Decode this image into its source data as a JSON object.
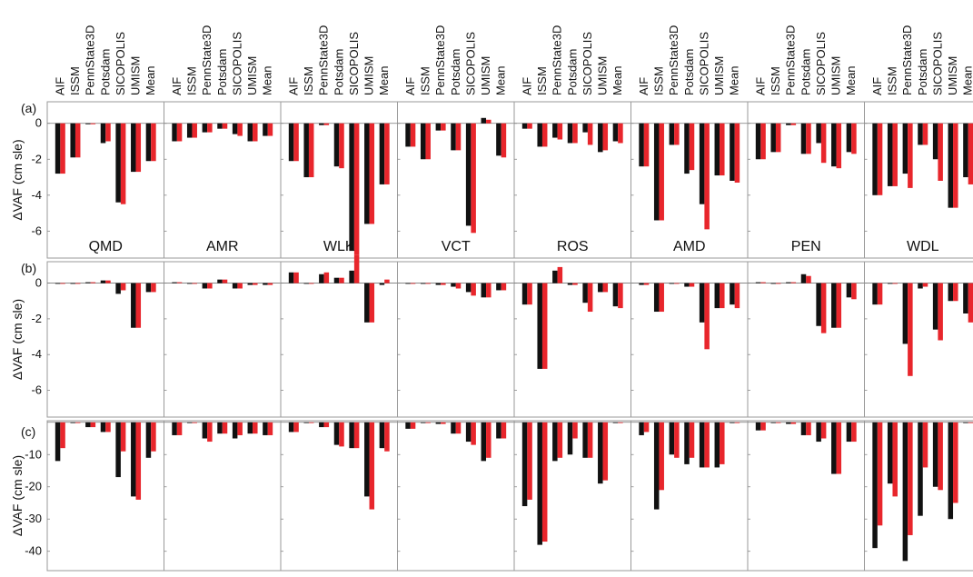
{
  "chart_data": {
    "type": "bar",
    "models": [
      "AIF",
      "ISSM",
      "PennState3D",
      "Potsdam",
      "SICOPOLIS",
      "UMISM",
      "Mean"
    ],
    "regions": [
      "QMD",
      "AMR",
      "WLK",
      "VCT",
      "ROS",
      "AMD",
      "PEN",
      "WDL"
    ],
    "colors": {
      "series1": "#111111",
      "series2": "#e8262c"
    },
    "panels": [
      {
        "label": "(a)",
        "ylabel": "ΔVAF (cm sle)",
        "ylim": [
          -7.5,
          1.2
        ],
        "yticks": [
          0,
          -2,
          -4,
          -6
        ],
        "show_region_labels": true,
        "values": {
          "QMD": [
            [
              -2.8,
              -2.8
            ],
            [
              -1.9,
              -1.9
            ],
            [
              -0.05,
              -0.05
            ],
            [
              -1.1,
              -1.0
            ],
            [
              -4.4,
              -4.5
            ],
            [
              -2.7,
              -2.7
            ],
            [
              -2.1,
              -2.1
            ]
          ],
          "AMR": [
            [
              -1.0,
              -1.0
            ],
            [
              -0.8,
              -0.8
            ],
            [
              -0.5,
              -0.5
            ],
            [
              -0.3,
              -0.3
            ],
            [
              -0.6,
              -0.7
            ],
            [
              -1.0,
              -1.0
            ],
            [
              -0.7,
              -0.7
            ]
          ],
          "WLK": [
            [
              -2.1,
              -2.1
            ],
            [
              -3.0,
              -3.0
            ],
            [
              -0.1,
              -0.1
            ],
            [
              -2.4,
              -2.5
            ],
            [
              -7.1,
              -7.3
            ],
            [
              -5.6,
              -5.6
            ],
            [
              -3.4,
              -3.4
            ]
          ],
          "VCT": [
            [
              -1.3,
              -1.3
            ],
            [
              -2.0,
              -2.0
            ],
            [
              -0.4,
              -0.4
            ],
            [
              -1.5,
              -1.5
            ],
            [
              -5.7,
              -6.1
            ],
            [
              0.3,
              0.2
            ],
            [
              -1.8,
              -1.9
            ]
          ],
          "ROS": [
            [
              -0.3,
              -0.3
            ],
            [
              -1.3,
              -1.3
            ],
            [
              -0.8,
              -0.9
            ],
            [
              -1.1,
              -1.1
            ],
            [
              -0.5,
              -1.2
            ],
            [
              -1.6,
              -1.5
            ],
            [
              -1.0,
              -1.1
            ]
          ],
          "AMD": [
            [
              -2.4,
              -2.4
            ],
            [
              -5.4,
              -5.4
            ],
            [
              -1.2,
              -1.2
            ],
            [
              -2.8,
              -2.6
            ],
            [
              -4.5,
              -5.9
            ],
            [
              -2.9,
              -2.9
            ],
            [
              -3.2,
              -3.3
            ]
          ],
          "PEN": [
            [
              -2.0,
              -2.0
            ],
            [
              -1.6,
              -1.6
            ],
            [
              -0.1,
              -0.1
            ],
            [
              -1.7,
              -1.7
            ],
            [
              -1.1,
              -2.2
            ],
            [
              -2.4,
              -2.5
            ],
            [
              -1.6,
              -1.7
            ]
          ],
          "WDL": [
            [
              -4.0,
              -4.0
            ],
            [
              -3.5,
              -3.5
            ],
            [
              -2.8,
              -3.6
            ],
            [
              -1.2,
              -1.2
            ],
            [
              -2.0,
              -3.2
            ],
            [
              -4.7,
              -4.7
            ],
            [
              -3.0,
              -3.4
            ]
          ]
        }
      },
      {
        "label": "(b)",
        "ylabel": "ΔVAF (cm sle)",
        "ylim": [
          -7.5,
          1.2
        ],
        "yticks": [
          0,
          -2,
          -4,
          -6
        ],
        "show_region_labels": false,
        "values": {
          "QMD": [
            [
              0.0,
              0.0
            ],
            [
              0.0,
              0.0
            ],
            [
              0.05,
              0.05
            ],
            [
              0.15,
              0.15
            ],
            [
              -0.6,
              -0.4
            ],
            [
              -2.5,
              -2.5
            ],
            [
              -0.5,
              -0.5
            ]
          ],
          "AMR": [
            [
              0.05,
              0.05
            ],
            [
              0.0,
              0.0
            ],
            [
              -0.3,
              -0.3
            ],
            [
              0.2,
              0.2
            ],
            [
              -0.3,
              -0.3
            ],
            [
              -0.1,
              -0.1
            ],
            [
              -0.1,
              -0.1
            ]
          ],
          "WLK": [
            [
              0.6,
              0.6
            ],
            [
              0.0,
              0.0
            ],
            [
              0.5,
              0.6
            ],
            [
              0.3,
              0.3
            ],
            [
              0.7,
              1.6
            ],
            [
              -2.2,
              -2.2
            ],
            [
              -0.1,
              0.2
            ]
          ],
          "VCT": [
            [
              0.0,
              0.0
            ],
            [
              0.0,
              0.0
            ],
            [
              -0.1,
              -0.1
            ],
            [
              -0.2,
              -0.3
            ],
            [
              -0.5,
              -0.7
            ],
            [
              -0.8,
              -0.8
            ],
            [
              -0.4,
              -0.4
            ]
          ],
          "ROS": [
            [
              -1.2,
              -1.2
            ],
            [
              -4.8,
              -4.8
            ],
            [
              0.7,
              0.9
            ],
            [
              -0.1,
              -0.1
            ],
            [
              -1.1,
              -1.6
            ],
            [
              -0.5,
              -0.5
            ],
            [
              -1.3,
              -1.4
            ]
          ],
          "AMD": [
            [
              -0.1,
              -0.1
            ],
            [
              -1.6,
              -1.6
            ],
            [
              0.0,
              0.0
            ],
            [
              -0.2,
              -0.2
            ],
            [
              -2.2,
              -3.7
            ],
            [
              -1.4,
              -1.4
            ],
            [
              -1.2,
              -1.4
            ]
          ],
          "PEN": [
            [
              0.05,
              0.05
            ],
            [
              0.0,
              0.0
            ],
            [
              0.05,
              0.05
            ],
            [
              0.5,
              0.4
            ],
            [
              -2.4,
              -2.8
            ],
            [
              -2.5,
              -2.5
            ],
            [
              -0.8,
              -0.9
            ]
          ],
          "WDL": [
            [
              -1.2,
              -1.2
            ],
            [
              0.0,
              0.0
            ],
            [
              -3.4,
              -5.2
            ],
            [
              -0.3,
              -0.2
            ],
            [
              -2.6,
              -3.2
            ],
            [
              -1.0,
              -1.0
            ],
            [
              -1.7,
              -2.2
            ]
          ]
        }
      },
      {
        "label": "(c)",
        "ylabel": "ΔVAF (cm sle)",
        "ylim": [
          -46,
          0.5
        ],
        "yticks": [
          -10,
          -20,
          -30,
          -40
        ],
        "show_region_labels": false,
        "values": {
          "QMD": [
            [
              -12,
              -8
            ],
            [
              0,
              0
            ],
            [
              -1.5,
              -1.5
            ],
            [
              -3,
              -3
            ],
            [
              -17,
              -9
            ],
            [
              -23,
              -24
            ],
            [
              -11,
              -9
            ]
          ],
          "AMR": [
            [
              -4,
              -4
            ],
            [
              0,
              0
            ],
            [
              -5,
              -6
            ],
            [
              -3.5,
              -3.5
            ],
            [
              -5,
              -4
            ],
            [
              -3.5,
              -3.5
            ],
            [
              -4,
              -4
            ]
          ],
          "WLK": [
            [
              -3,
              -3
            ],
            [
              0,
              0
            ],
            [
              -1.5,
              -1.5
            ],
            [
              -7,
              -7.5
            ],
            [
              -8,
              -8
            ],
            [
              -23,
              -27
            ],
            [
              -8,
              -9
            ]
          ],
          "VCT": [
            [
              -2,
              -2
            ],
            [
              0,
              0
            ],
            [
              -0.5,
              -0.5
            ],
            [
              -3.5,
              -3.5
            ],
            [
              -6,
              -7
            ],
            [
              -12,
              -11
            ],
            [
              -5,
              -5
            ]
          ],
          "ROS": [
            [
              -26,
              -24
            ],
            [
              -38,
              -37
            ],
            [
              -12,
              -11
            ],
            [
              -10,
              -5
            ],
            [
              -11,
              -11
            ],
            [
              -19,
              -18
            ],
            [
              0,
              0
            ]
          ],
          "AMD": [
            [
              -4,
              -3
            ],
            [
              -27,
              -21
            ],
            [
              -10,
              -11
            ],
            [
              -13,
              -11
            ],
            [
              -14,
              -14
            ],
            [
              -14,
              -13
            ],
            [
              0,
              0
            ]
          ],
          "PEN": [
            [
              -2.5,
              -2.5
            ],
            [
              0,
              0
            ],
            [
              -0.5,
              -0.5
            ],
            [
              -4,
              -4
            ],
            [
              -6,
              -5
            ],
            [
              -16,
              -16
            ],
            [
              -6,
              -6
            ]
          ],
          "WDL": [
            [
              -39,
              -32
            ],
            [
              -19,
              -23
            ],
            [
              -43,
              -35
            ],
            [
              -29,
              -14
            ],
            [
              -20,
              -21
            ],
            [
              -30,
              -25
            ],
            [
              0,
              0
            ]
          ]
        }
      }
    ]
  }
}
